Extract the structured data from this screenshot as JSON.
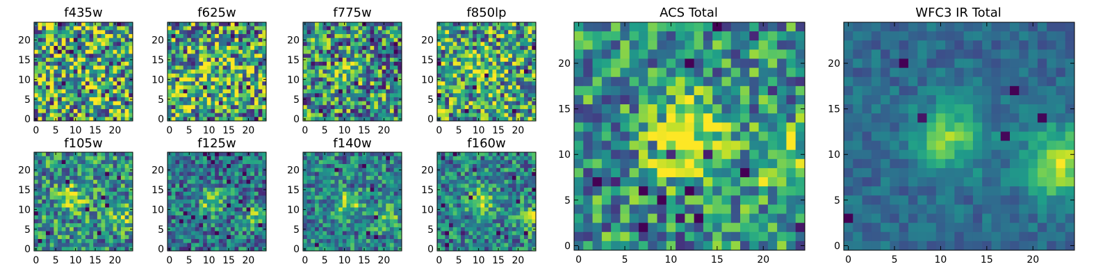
{
  "chart_data": [
    {
      "type": "heatmap",
      "title": "f435w",
      "grid_size": 25,
      "xticks": [
        0,
        5,
        10,
        15,
        20
      ],
      "yticks": [
        0,
        5,
        10,
        15,
        20
      ],
      "xlim": [
        -0.5,
        24.5
      ],
      "ylim": [
        -0.5,
        24.5
      ],
      "colormap": "viridis",
      "seed": 101
    },
    {
      "type": "heatmap",
      "title": "f625w",
      "grid_size": 25,
      "xticks": [
        0,
        5,
        10,
        15,
        20
      ],
      "yticks": [
        0,
        5,
        10,
        15,
        20
      ],
      "xlim": [
        -0.5,
        24.5
      ],
      "ylim": [
        -0.5,
        24.5
      ],
      "colormap": "viridis",
      "seed": 202
    },
    {
      "type": "heatmap",
      "title": "f775w",
      "grid_size": 25,
      "xticks": [
        0,
        5,
        10,
        15,
        20
      ],
      "yticks": [
        0,
        5,
        10,
        15,
        20
      ],
      "xlim": [
        -0.5,
        24.5
      ],
      "ylim": [
        -0.5,
        24.5
      ],
      "colormap": "viridis",
      "seed": 303
    },
    {
      "type": "heatmap",
      "title": "f850lp",
      "grid_size": 25,
      "xticks": [
        0,
        5,
        10,
        15,
        20
      ],
      "yticks": [
        0,
        5,
        10,
        15,
        20
      ],
      "xlim": [
        -0.5,
        24.5
      ],
      "ylim": [
        -0.5,
        24.5
      ],
      "colormap": "viridis",
      "seed": 404
    },
    {
      "type": "heatmap",
      "title": "f105w",
      "grid_size": 25,
      "xticks": [
        0,
        5,
        10,
        15,
        20
      ],
      "yticks": [
        0,
        5,
        10,
        15,
        20
      ],
      "xlim": [
        -0.5,
        24.5
      ],
      "ylim": [
        -0.5,
        24.5
      ],
      "colormap": "viridis",
      "seed": 505
    },
    {
      "type": "heatmap",
      "title": "f125w",
      "grid_size": 25,
      "xticks": [
        0,
        5,
        10,
        15,
        20
      ],
      "yticks": [
        0,
        5,
        10,
        15,
        20
      ],
      "xlim": [
        -0.5,
        24.5
      ],
      "ylim": [
        -0.5,
        24.5
      ],
      "colormap": "viridis",
      "seed": 606
    },
    {
      "type": "heatmap",
      "title": "f140w",
      "grid_size": 25,
      "xticks": [
        0,
        5,
        10,
        15,
        20
      ],
      "yticks": [
        0,
        5,
        10,
        15,
        20
      ],
      "xlim": [
        -0.5,
        24.5
      ],
      "ylim": [
        -0.5,
        24.5
      ],
      "colormap": "viridis",
      "seed": 707
    },
    {
      "type": "heatmap",
      "title": "f160w",
      "grid_size": 25,
      "xticks": [
        0,
        5,
        10,
        15,
        20
      ],
      "yticks": [
        0,
        5,
        10,
        15,
        20
      ],
      "xlim": [
        -0.5,
        24.5
      ],
      "ylim": [
        -0.5,
        24.5
      ],
      "colormap": "viridis",
      "seed": 808
    },
    {
      "type": "heatmap",
      "title": "ACS Total",
      "grid_size": 25,
      "xticks": [
        0,
        5,
        10,
        15,
        20
      ],
      "yticks": [
        0,
        5,
        10,
        15,
        20
      ],
      "xlim": [
        -0.5,
        24.5
      ],
      "ylim": [
        -0.5,
        24.5
      ],
      "colormap": "viridis",
      "seed": 909
    },
    {
      "type": "heatmap",
      "title": "WFC3 IR Total",
      "grid_size": 25,
      "xticks": [
        0,
        5,
        10,
        15,
        20
      ],
      "yticks": [
        0,
        5,
        10,
        15,
        20
      ],
      "xlim": [
        -0.5,
        24.5
      ],
      "ylim": [
        -0.5,
        24.5
      ],
      "colormap": "viridis",
      "seed": 1010
    }
  ]
}
